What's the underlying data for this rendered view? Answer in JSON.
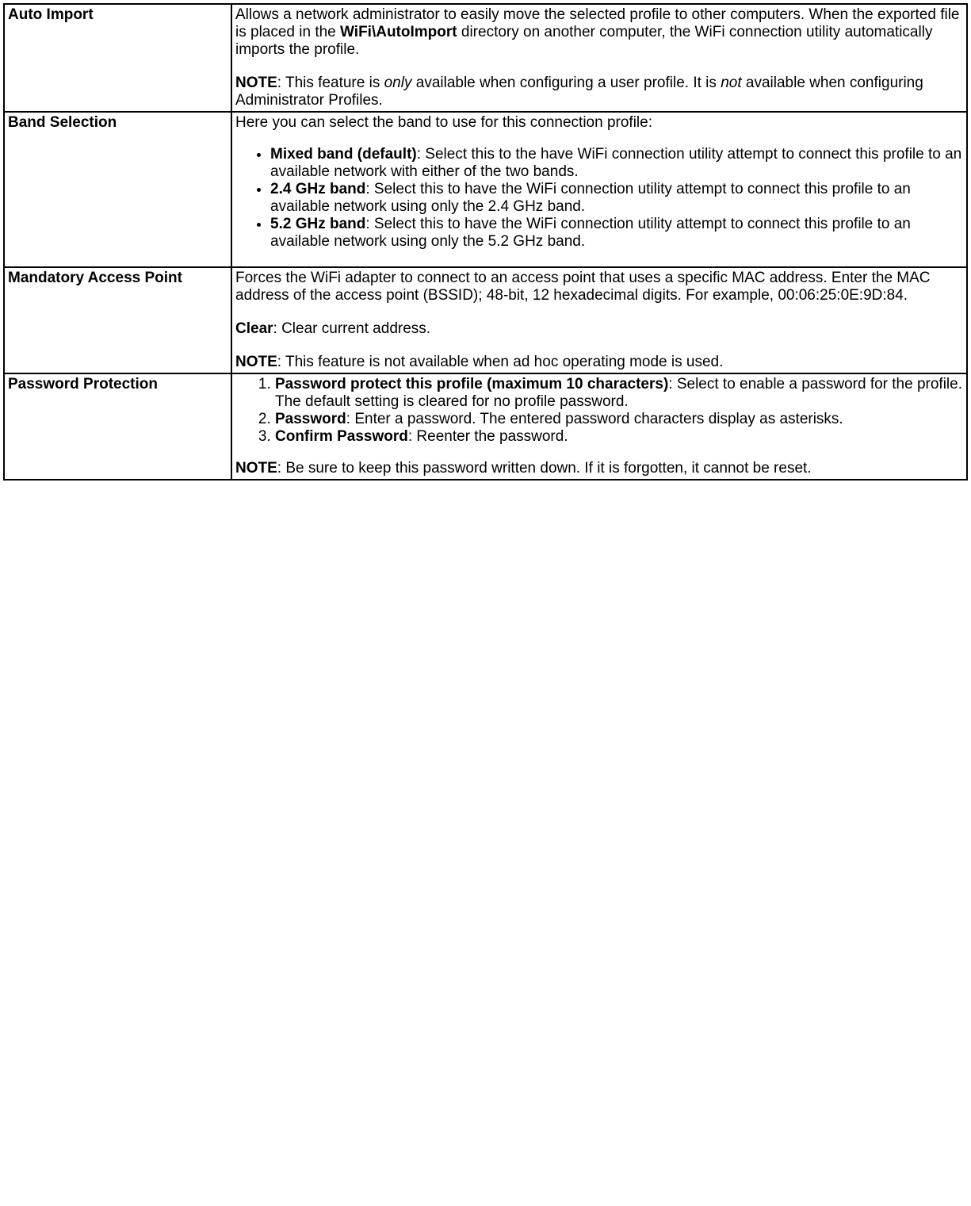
{
  "rows": {
    "auto_import": {
      "label": "Auto Import",
      "p1_pre": "Allows a network administrator to easily move the selected profile to other computers. When the exported file is placed in the ",
      "p1_bold": "WiFi\\AutoImport",
      "p1_post": " directory on another computer, the WiFi connection utility automatically imports the profile.",
      "p2_note": "NOTE",
      "p2_a": ": This feature is ",
      "p2_i1": "only",
      "p2_b": " available when configuring a user profile. It is ",
      "p2_i2": "not",
      "p2_c": " available when configuring Administrator Profiles."
    },
    "band_selection": {
      "label": "Band Selection",
      "intro": "Here you can select the band to use for this connection profile:",
      "li1_b": "Mixed band (default)",
      "li1_t": ": Select this to the have WiFi connection utility attempt to connect this profile to an available network with either of the two bands.",
      "li2_b": "2.4 GHz band",
      "li2_t": ": Select this to have the WiFi connection utility attempt to connect this profile to an available network using only the 2.4 GHz band.",
      "li3_b": "5.2 GHz band",
      "li3_t": ": Select this to have the WiFi connection utility attempt to connect this profile to an available network using only the 5.2 GHz band."
    },
    "mandatory_ap": {
      "label": "Mandatory Access Point",
      "p1": "Forces the WiFi adapter to connect to an access point that uses a specific MAC address. Enter the MAC address of the access point (BSSID); 48-bit, 12 hexadecimal digits. For example, 00:06:25:0E:9D:84.",
      "p2_b": "Clear",
      "p2_t": ": Clear current address.",
      "p3_b": "NOTE",
      "p3_t": ": This feature is not available when ad hoc operating mode is used."
    },
    "password_protection": {
      "label": "Password Protection",
      "li1_b": "Password protect this profile (maximum 10 characters)",
      "li1_t": ": Select to enable a password for the profile. The default setting is cleared for no profile password.",
      "li2_b": "Password",
      "li2_t": ": Enter a password. The entered password characters display as asterisks.",
      "li3_b": "Confirm Password",
      "li3_t": ": Reenter the password.",
      "note_b": "NOTE",
      "note_t": ": Be sure to keep this password written down. If it is forgotten, it cannot be reset."
    }
  }
}
